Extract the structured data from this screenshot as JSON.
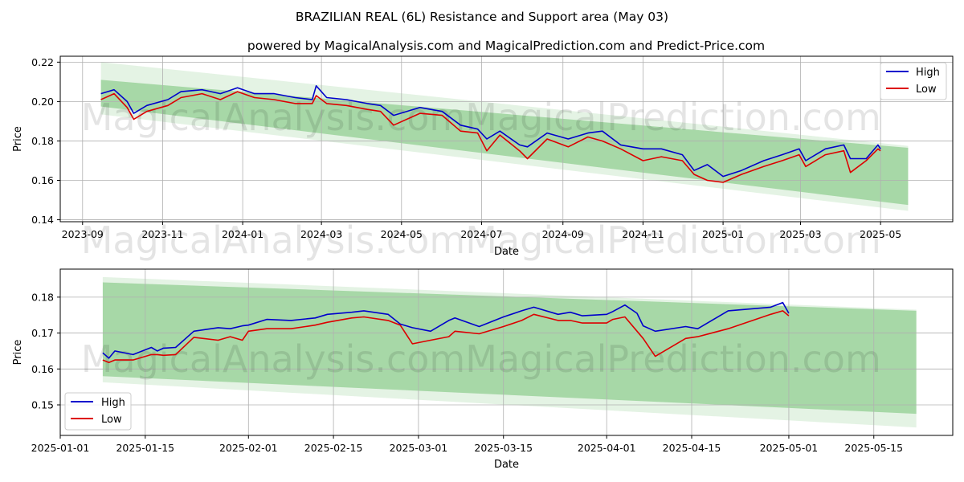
{
  "title": "BRAZILIAN REAL (6L) Resistance and Support area (May 03)",
  "subtitle": "powered by MagicalAnalysis.com and MagicalPrediction.com and Predict-Price.com",
  "watermarks": [
    "MagicalAnalysis.com",
    "MagicalPrediction.com"
  ],
  "colors": {
    "high": "#0000cc",
    "low": "#dd0000",
    "band": "#2ca02c",
    "grid": "#b0b0b0"
  },
  "chart_data": [
    {
      "type": "line",
      "name": "top-chart",
      "xlabel": "Date",
      "ylabel": "Price",
      "xlim": [
        "2023-08-15",
        "2025-06-25"
      ],
      "ylim": [
        0.139,
        0.223
      ],
      "xticks": [
        "2023-09",
        "2023-11",
        "2024-01",
        "2024-03",
        "2024-05",
        "2024-07",
        "2024-09",
        "2024-11",
        "2025-01",
        "2025-03",
        "2025-05"
      ],
      "yticks": [
        "0.14",
        "0.16",
        "0.18",
        "0.20",
        "0.22"
      ],
      "legend": {
        "position": "top-right",
        "entries": [
          "High",
          "Low"
        ]
      },
      "band": {
        "start": "2023-09-15",
        "end": "2025-05-22",
        "outer_upper": [
          0.22,
          0.1775
        ],
        "outer_lower": [
          0.1935,
          0.1445
        ],
        "inner_upper": [
          0.211,
          0.1765
        ],
        "inner_lower": [
          0.1975,
          0.1475
        ]
      },
      "series": [
        {
          "name": "High",
          "x": [
            "2023-09-15",
            "2023-09-25",
            "2023-10-05",
            "2023-10-10",
            "2023-10-20",
            "2023-11-05",
            "2023-11-15",
            "2023-12-01",
            "2023-12-15",
            "2023-12-28",
            "2024-01-10",
            "2024-01-25",
            "2024-02-10",
            "2024-02-23",
            "2024-02-26",
            "2024-03-05",
            "2024-03-20",
            "2024-04-05",
            "2024-04-15",
            "2024-04-25",
            "2024-05-15",
            "2024-06-01",
            "2024-06-15",
            "2024-06-28",
            "2024-07-05",
            "2024-07-15",
            "2024-07-30",
            "2024-08-05",
            "2024-08-20",
            "2024-09-05",
            "2024-09-20",
            "2024-10-01",
            "2024-10-15",
            "2024-11-01",
            "2024-11-15",
            "2024-12-01",
            "2024-12-10",
            "2024-12-20",
            "2025-01-01",
            "2025-01-15",
            "2025-02-01",
            "2025-02-15",
            "2025-02-28",
            "2025-03-05",
            "2025-03-20",
            "2025-04-03",
            "2025-04-08",
            "2025-04-20",
            "2025-04-29",
            "2025-05-01"
          ],
          "values": [
            0.204,
            0.206,
            0.2,
            0.194,
            0.198,
            0.201,
            0.205,
            0.206,
            0.204,
            0.207,
            0.204,
            0.204,
            0.202,
            0.201,
            0.208,
            0.202,
            0.201,
            0.199,
            0.198,
            0.193,
            0.197,
            0.195,
            0.188,
            0.186,
            0.181,
            0.185,
            0.178,
            0.177,
            0.184,
            0.181,
            0.184,
            0.185,
            0.178,
            0.176,
            0.176,
            0.173,
            0.165,
            0.168,
            0.162,
            0.165,
            0.17,
            0.173,
            0.176,
            0.17,
            0.176,
            0.178,
            0.171,
            0.171,
            0.178,
            0.176
          ]
        },
        {
          "name": "Low",
          "x": [
            "2023-09-15",
            "2023-09-25",
            "2023-10-05",
            "2023-10-10",
            "2023-10-20",
            "2023-11-05",
            "2023-11-15",
            "2023-12-01",
            "2023-12-15",
            "2023-12-28",
            "2024-01-10",
            "2024-01-25",
            "2024-02-10",
            "2024-02-23",
            "2024-02-26",
            "2024-03-05",
            "2024-03-20",
            "2024-04-05",
            "2024-04-15",
            "2024-04-25",
            "2024-05-15",
            "2024-06-01",
            "2024-06-15",
            "2024-06-28",
            "2024-07-05",
            "2024-07-15",
            "2024-07-30",
            "2024-08-05",
            "2024-08-20",
            "2024-09-05",
            "2024-09-20",
            "2024-10-01",
            "2024-10-15",
            "2024-11-01",
            "2024-11-15",
            "2024-12-01",
            "2024-12-10",
            "2024-12-20",
            "2025-01-01",
            "2025-01-15",
            "2025-02-01",
            "2025-02-15",
            "2025-02-28",
            "2025-03-05",
            "2025-03-20",
            "2025-04-03",
            "2025-04-08",
            "2025-04-20",
            "2025-04-29",
            "2025-05-01"
          ],
          "values": [
            0.201,
            0.204,
            0.197,
            0.191,
            0.195,
            0.198,
            0.202,
            0.204,
            0.201,
            0.205,
            0.202,
            0.201,
            0.199,
            0.199,
            0.203,
            0.199,
            0.198,
            0.196,
            0.195,
            0.188,
            0.194,
            0.193,
            0.185,
            0.184,
            0.175,
            0.183,
            0.175,
            0.171,
            0.181,
            0.177,
            0.182,
            0.18,
            0.176,
            0.17,
            0.172,
            0.17,
            0.163,
            0.16,
            0.159,
            0.163,
            0.167,
            0.17,
            0.173,
            0.167,
            0.173,
            0.175,
            0.164,
            0.17,
            0.176,
            0.175
          ]
        }
      ]
    },
    {
      "type": "line",
      "name": "bottom-chart",
      "xlabel": "Date",
      "ylabel": "Price",
      "xlim": [
        "2025-01-01",
        "2025-05-28"
      ],
      "ylim": [
        0.1415,
        0.1878
      ],
      "xticks": [
        "2025-01-01",
        "2025-01-15",
        "2025-02-01",
        "2025-02-15",
        "2025-03-01",
        "2025-03-15",
        "2025-04-01",
        "2025-04-15",
        "2025-05-01",
        "2025-05-15"
      ],
      "yticks": [
        "0.15",
        "0.16",
        "0.17",
        "0.18"
      ],
      "legend": {
        "position": "bottom-left",
        "entries": [
          "High",
          "Low"
        ]
      },
      "band": {
        "start": "2025-01-08",
        "end": "2025-05-22",
        "outer_upper": [
          0.1856,
          0.1765
        ],
        "outer_lower": [
          0.1563,
          0.1437
        ],
        "inner_upper": [
          0.1841,
          0.1762
        ],
        "inner_lower": [
          0.158,
          0.1475
        ]
      },
      "series": [
        {
          "name": "High",
          "x": [
            "2025-01-08",
            "2025-01-09",
            "2025-01-10",
            "2025-01-13",
            "2025-01-16",
            "2025-01-17",
            "2025-01-18",
            "2025-01-20",
            "2025-01-23",
            "2025-01-27",
            "2025-01-29",
            "2025-01-31",
            "2025-02-01",
            "2025-02-04",
            "2025-02-08",
            "2025-02-12",
            "2025-02-14",
            "2025-02-18",
            "2025-02-20",
            "2025-02-24",
            "2025-02-26",
            "2025-02-28",
            "2025-03-03",
            "2025-03-06",
            "2025-03-07",
            "2025-03-11",
            "2025-03-15",
            "2025-03-18",
            "2025-03-20",
            "2025-03-24",
            "2025-03-26",
            "2025-03-28",
            "2025-04-01",
            "2025-04-02",
            "2025-04-04",
            "2025-04-06",
            "2025-04-07",
            "2025-04-09",
            "2025-04-14",
            "2025-04-16",
            "2025-04-21",
            "2025-04-28",
            "2025-04-30",
            "2025-05-01"
          ],
          "values": [
            0.1645,
            0.163,
            0.165,
            0.164,
            0.166,
            0.165,
            0.1658,
            0.166,
            0.1705,
            0.1715,
            0.1712,
            0.172,
            0.1722,
            0.1738,
            0.1735,
            0.1742,
            0.1752,
            0.1758,
            0.1762,
            0.1752,
            0.1725,
            0.1715,
            0.1705,
            0.1735,
            0.1742,
            0.1718,
            0.1745,
            0.1762,
            0.1772,
            0.1752,
            0.1758,
            0.1748,
            0.1752,
            0.176,
            0.1778,
            0.1755,
            0.172,
            0.1705,
            0.1718,
            0.1712,
            0.1762,
            0.1772,
            0.1785,
            0.1755
          ]
        },
        {
          "name": "Low",
          "x": [
            "2025-01-08",
            "2025-01-09",
            "2025-01-10",
            "2025-01-13",
            "2025-01-16",
            "2025-01-17",
            "2025-01-18",
            "2025-01-20",
            "2025-01-23",
            "2025-01-27",
            "2025-01-29",
            "2025-01-31",
            "2025-02-01",
            "2025-02-04",
            "2025-02-08",
            "2025-02-12",
            "2025-02-14",
            "2025-02-18",
            "2025-02-20",
            "2025-02-24",
            "2025-02-26",
            "2025-02-28",
            "2025-03-03",
            "2025-03-06",
            "2025-03-07",
            "2025-03-11",
            "2025-03-15",
            "2025-03-18",
            "2025-03-20",
            "2025-03-24",
            "2025-03-26",
            "2025-03-28",
            "2025-04-01",
            "2025-04-02",
            "2025-04-04",
            "2025-04-06",
            "2025-04-07",
            "2025-04-09",
            "2025-04-14",
            "2025-04-16",
            "2025-04-21",
            "2025-04-28",
            "2025-04-30",
            "2025-05-01"
          ],
          "values": [
            0.1625,
            0.1618,
            0.1625,
            0.1625,
            0.164,
            0.164,
            0.1638,
            0.164,
            0.1688,
            0.168,
            0.169,
            0.168,
            0.1705,
            0.1712,
            0.1712,
            0.1722,
            0.173,
            0.1742,
            0.1745,
            0.1735,
            0.1722,
            0.167,
            0.168,
            0.169,
            0.1705,
            0.1698,
            0.1718,
            0.1735,
            0.1752,
            0.1735,
            0.1735,
            0.1728,
            0.1728,
            0.1738,
            0.1745,
            0.1705,
            0.1685,
            0.1635,
            0.1685,
            0.169,
            0.1712,
            0.1752,
            0.1762,
            0.1748
          ]
        }
      ]
    }
  ]
}
